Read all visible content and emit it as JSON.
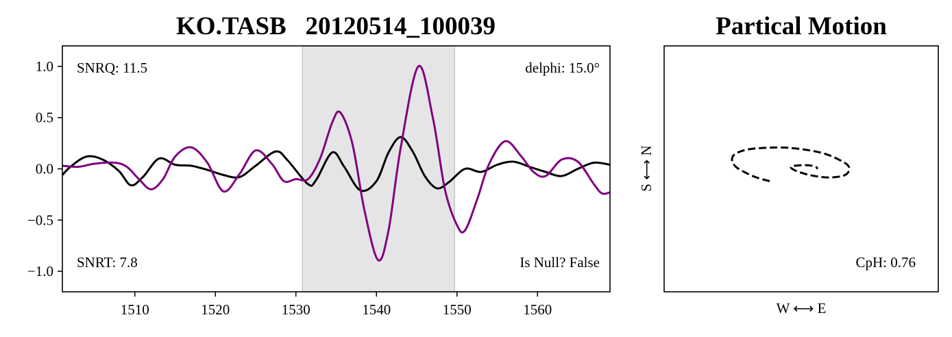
{
  "chart_data": [
    {
      "type": "line",
      "title": "KO.TASB   20120514_100039",
      "xlim": [
        1501,
        1569
      ],
      "ylim": [
        -1.2,
        1.2
      ],
      "x_ticks": [
        1510,
        1520,
        1530,
        1540,
        1550,
        1560
      ],
      "y_ticks": [
        1.0,
        0.5,
        0.0,
        -0.5,
        -1.0
      ],
      "y_tick_labels": [
        "1.0",
        "0.5",
        "0.0",
        "−0.5",
        "−1.0"
      ],
      "shaded_window": [
        1530.8,
        1549.7
      ],
      "annotations": {
        "top_left": "SNRQ: 11.5",
        "top_right": "delphi: 15.0°",
        "bottom_left": "SNRT: 7.8",
        "bottom_right": "Is Null? False"
      },
      "series": [
        {
          "color": "#000000",
          "x": [
            1501,
            1502,
            1504,
            1506,
            1508,
            1509.5,
            1511,
            1513,
            1515,
            1517,
            1519,
            1521,
            1523,
            1525,
            1527.5,
            1529,
            1531.5,
            1532.5,
            1534.5,
            1536,
            1538,
            1540,
            1541.5,
            1543,
            1544.5,
            1546,
            1547.5,
            1549,
            1551,
            1553,
            1555,
            1557,
            1559,
            1561,
            1563,
            1565,
            1567,
            1569
          ],
          "y": [
            -0.06,
            0.02,
            0.12,
            0.09,
            -0.02,
            -0.16,
            -0.08,
            0.1,
            0.04,
            0.03,
            -0.01,
            -0.06,
            -0.08,
            0.03,
            0.17,
            0.08,
            -0.15,
            -0.11,
            0.16,
            0.02,
            -0.21,
            -0.12,
            0.16,
            0.31,
            0.17,
            -0.07,
            -0.19,
            -0.13,
            0.0,
            -0.03,
            0.04,
            0.07,
            0.02,
            -0.03,
            -0.07,
            0.0,
            0.06,
            0.04
          ]
        },
        {
          "color": "#800080",
          "x": [
            1501,
            1503,
            1505,
            1507.5,
            1509,
            1510.5,
            1512,
            1513.5,
            1515,
            1517,
            1519,
            1521,
            1523,
            1525,
            1527,
            1528.5,
            1530,
            1531.5,
            1533,
            1534.5,
            1535.5,
            1537,
            1538.5,
            1540.2,
            1541.5,
            1543,
            1545.2,
            1547,
            1548.5,
            1550,
            1551,
            1552.5,
            1554,
            1556,
            1558,
            1559.5,
            1561,
            1563,
            1565,
            1567,
            1568,
            1569
          ],
          "y": [
            0.03,
            0.02,
            0.05,
            0.06,
            0.02,
            -0.1,
            -0.2,
            -0.1,
            0.12,
            0.21,
            0.06,
            -0.22,
            -0.05,
            0.18,
            0.05,
            -0.12,
            -0.1,
            -0.1,
            0.1,
            0.45,
            0.55,
            0.25,
            -0.4,
            -0.89,
            -0.6,
            0.2,
            1.0,
            0.5,
            -0.2,
            -0.55,
            -0.6,
            -0.3,
            0.05,
            0.27,
            0.12,
            -0.03,
            -0.07,
            0.09,
            0.07,
            -0.15,
            -0.24,
            -0.23
          ]
        }
      ]
    },
    {
      "type": "line",
      "title": "Partical Motion",
      "xlabel": "W ⟷ E",
      "ylabel": "S ⟷ N",
      "xlim": [
        -1,
        1
      ],
      "ylim": [
        -1,
        1
      ],
      "annotations": {
        "bottom_right": "CpH: 0.76"
      },
      "series": [
        {
          "color": "#000000",
          "style": "dashed",
          "x": [
            -0.23,
            -0.35,
            -0.48,
            -0.5,
            -0.42,
            -0.28,
            -0.08,
            0.15,
            0.3,
            0.35,
            0.32,
            0.2,
            0.06,
            -0.05,
            -0.07,
            0.03,
            0.1,
            0.12
          ],
          "y": [
            -0.1,
            -0.06,
            0.02,
            0.1,
            0.15,
            0.17,
            0.17,
            0.13,
            0.06,
            0.01,
            -0.05,
            -0.07,
            -0.05,
            -0.01,
            0.02,
            0.03,
            0.02,
            0.0
          ]
        }
      ]
    }
  ]
}
